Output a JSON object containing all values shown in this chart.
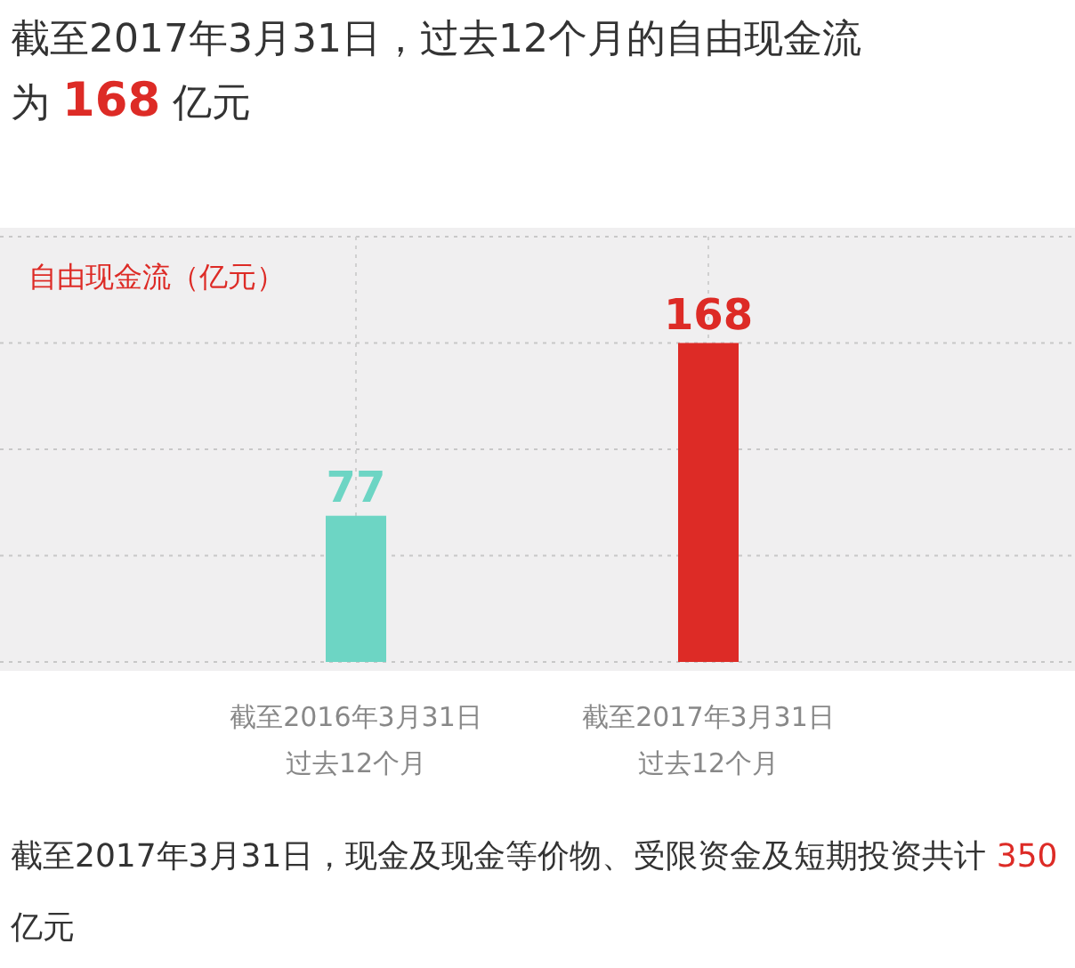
{
  "chart_data": {
    "type": "bar",
    "title": "截至2017年3月31日，过去12个月的自由现金流为 **168** 亿元",
    "ylabel": "自由现金流（亿元）",
    "categories": [
      "截至2016年3月31日过去12个月",
      "截至2017年3月31日过去12个月"
    ],
    "values": [
      77,
      168
    ],
    "colors": [
      "#6dd5c4",
      "#dd2b26"
    ],
    "data_labels": true,
    "ylim": [
      0,
      224
    ],
    "yticks": [
      {
        "value": 0,
        "label": null
      },
      {
        "value": 56,
        "label": null
      },
      {
        "value": 112,
        "label": null
      },
      {
        "value": 168,
        "label": null
      },
      {
        "value": 224,
        "label": null
      }
    ],
    "grid": true,
    "annotations": [
      "截至2017年3月31日，现金及现金等价物、受限资金及短期投资共计 **350** 亿元"
    ]
  }
}
